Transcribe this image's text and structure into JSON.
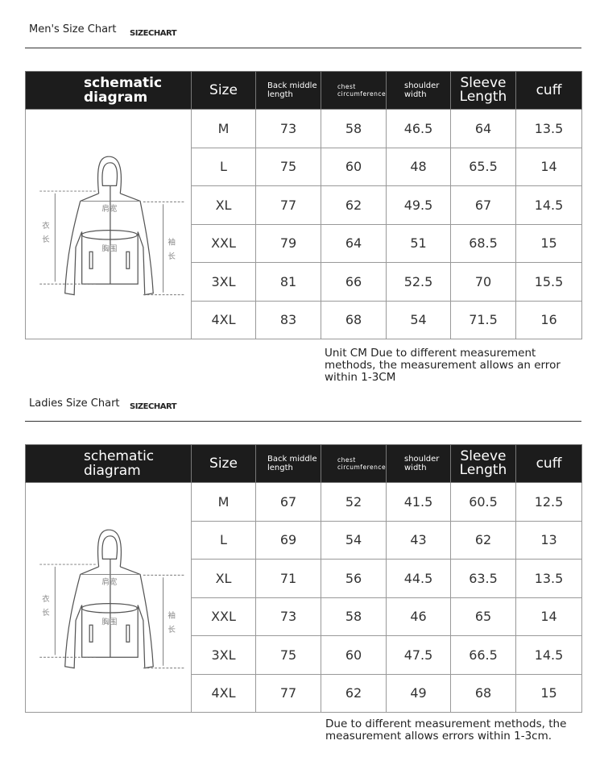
{
  "headers": {
    "schematic": "schematic diagram",
    "size": "Size",
    "back": "Back middle length",
    "chest": "chest circumference",
    "shoulder": "shoulder width",
    "sleeve": "Sleeve Length",
    "cuff": "cuff"
  },
  "diagram_labels": {
    "shoulder": "肩宽",
    "chest": "胸围",
    "length_1": "衣",
    "length_2": "长",
    "sleeve_1": "袖",
    "sleeve_2": "长"
  },
  "men": {
    "title": "Men's Size Chart",
    "subtitle": "SIZECHART",
    "rows": [
      [
        "M",
        "73",
        "58",
        "46.5",
        "64",
        "13.5"
      ],
      [
        "L",
        "75",
        "60",
        "48",
        "65.5",
        "14"
      ],
      [
        "XL",
        "77",
        "62",
        "49.5",
        "67",
        "14.5"
      ],
      [
        "XXL",
        "79",
        "64",
        "51",
        "68.5",
        "15"
      ],
      [
        "3XL",
        "81",
        "66",
        "52.5",
        "70",
        "15.5"
      ],
      [
        "4XL",
        "83",
        "68",
        "54",
        "71.5",
        "16"
      ]
    ],
    "note": "Unit CM Due to different measurement methods, the measurement allows an error within 1-3CM"
  },
  "ladies": {
    "title": "Ladies Size Chart",
    "subtitle": "SIZECHART",
    "rows": [
      [
        "M",
        "67",
        "52",
        "41.5",
        "60.5",
        "12.5"
      ],
      [
        "L",
        "69",
        "54",
        "43",
        "62",
        "13"
      ],
      [
        "XL",
        "71",
        "56",
        "44.5",
        "63.5",
        "13.5"
      ],
      [
        "XXL",
        "73",
        "58",
        "46",
        "65",
        "14"
      ],
      [
        "3XL",
        "75",
        "60",
        "47.5",
        "66.5",
        "14.5"
      ],
      [
        "4XL",
        "77",
        "62",
        "49",
        "68",
        "15"
      ]
    ],
    "note": "Due to different measurement methods, the measurement allows errors within 1-3cm."
  }
}
